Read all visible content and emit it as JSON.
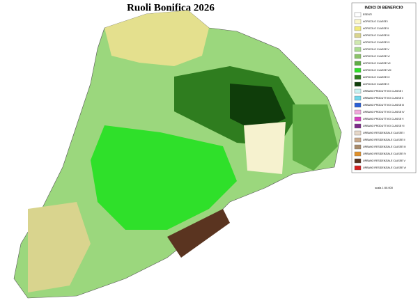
{
  "header": {
    "title": "Ruoli Bonifica 2026"
  },
  "legend": {
    "title": "INDICI DI BENEFICIO",
    "items": [
      {
        "label": "ESENTI",
        "color": "#ffffff"
      },
      {
        "label": "AGRICOLO CLASSE I",
        "color": "#fbf7c8"
      },
      {
        "label": "AGRICOLO CLASSE II",
        "color": "#f1ea7a"
      },
      {
        "label": "AGRICOLO CLASSE III",
        "color": "#d9d48e"
      },
      {
        "label": "AGRICOLO CLASSE IV",
        "color": "#cfe8b0"
      },
      {
        "label": "AGRICOLO CLASSE V",
        "color": "#a9dc8f"
      },
      {
        "label": "AGRICOLO CLASSE VI",
        "color": "#8cc46a"
      },
      {
        "label": "AGRICOLO CLASSE VII",
        "color": "#5fae45"
      },
      {
        "label": "AGRICOLO CLASSE VIII",
        "color": "#2fe02a"
      },
      {
        "label": "AGRICOLO CLASSE IX",
        "color": "#2f7d1f"
      },
      {
        "label": "AGRICOLO CLASSE X",
        "color": "#0f3d0a"
      },
      {
        "label": "URBANO PRODUTTIVO CLASSE I",
        "color": "#c9f2f2"
      },
      {
        "label": "URBANO PRODUTTIVO CLASSE II",
        "color": "#6fd6ea"
      },
      {
        "label": "URBANO PRODUTTIVO CLASSE III",
        "color": "#2a5fd6"
      },
      {
        "label": "URBANO PRODUTTIVO CLASSE IV",
        "color": "#f1a8dc"
      },
      {
        "label": "URBANO PRODUTTIVO CLASSE V",
        "color": "#d63fbf"
      },
      {
        "label": "URBANO PRODUTTIVO CLASSE VI",
        "color": "#7d2c8a"
      },
      {
        "label": "URBANO RESIDENZIALE CLASSE I",
        "color": "#e6d7c8"
      },
      {
        "label": "URBANO RESIDENZIALE CLASSE II",
        "color": "#c9a98a"
      },
      {
        "label": "URBANO RESIDENZIALE CLASSE III",
        "color": "#a88a6a"
      },
      {
        "label": "URBANO RESIDENZIALE CLASSE IV",
        "color": "#e0902a"
      },
      {
        "label": "URBANO RESIDENZIALE CLASSE V",
        "color": "#5a3420"
      },
      {
        "label": "URBANO RESIDENZIALE CLASSE VI",
        "color": "#d61f1f"
      }
    ]
  },
  "scale": "scala 1:50.000"
}
